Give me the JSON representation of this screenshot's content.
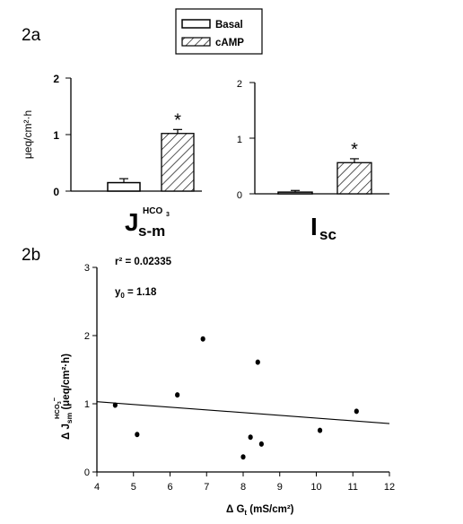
{
  "panel_labels": {
    "a": "2a",
    "b": "2b"
  },
  "legend": [
    {
      "label": "Basal",
      "fill": "#ffffff"
    },
    {
      "label": "cAMP",
      "fill": "hatch"
    }
  ],
  "chart_data": [
    {
      "type": "bar",
      "panel": "2a-left",
      "categories": [
        "Basal",
        "cAMP"
      ],
      "values": [
        0.15,
        1.02
      ],
      "errors": [
        0.07,
        0.07
      ],
      "ylim": [
        0,
        2
      ],
      "yticks": [
        "0",
        "1",
        "2"
      ],
      "ylabel": "μeq/cm²·h",
      "xlabel_main": "J",
      "xlabel_super": "HCO",
      "xlabel_super_sub": "3",
      "xlabel_sub": "s-m",
      "significance": "*"
    },
    {
      "type": "bar",
      "panel": "2a-right",
      "categories": [
        "Basal",
        "cAMP"
      ],
      "values": [
        0.03,
        0.56
      ],
      "errors": [
        0.03,
        0.07
      ],
      "ylim": [
        0,
        2
      ],
      "yticks": [
        "0",
        "1",
        "2"
      ],
      "xlabel_main": "I",
      "xlabel_sub": "sc",
      "significance": "*"
    },
    {
      "type": "scatter",
      "panel": "2b",
      "xlim": [
        4,
        12
      ],
      "ylim": [
        0,
        3
      ],
      "xticks": [
        "4",
        "5",
        "6",
        "7",
        "8",
        "9",
        "10",
        "11",
        "12"
      ],
      "yticks": [
        "0",
        "1",
        "2",
        "3"
      ],
      "xlabel": "Δ G",
      "xlabel_sub": "t",
      "xlabel_unit": " (mS/cm²)",
      "ylabel_prefix": "Δ J",
      "ylabel_sub": "sm",
      "ylabel_super": "HCO",
      "ylabel_super_sub": "3",
      "ylabel_super_charge": "−",
      "ylabel_unit": " (μeq/cm²·h)",
      "points": [
        {
          "x": 4.5,
          "y": 0.98
        },
        {
          "x": 5.1,
          "y": 0.55
        },
        {
          "x": 6.2,
          "y": 1.13
        },
        {
          "x": 6.9,
          "y": 1.95
        },
        {
          "x": 8.0,
          "y": 0.22
        },
        {
          "x": 8.2,
          "y": 0.51
        },
        {
          "x": 8.4,
          "y": 1.61
        },
        {
          "x": 8.5,
          "y": 0.41
        },
        {
          "x": 10.1,
          "y": 0.61
        },
        {
          "x": 11.1,
          "y": 0.89
        }
      ],
      "regression_line": {
        "x": [
          4,
          12
        ],
        "y": [
          1.03,
          0.71
        ]
      },
      "annotations": {
        "r2_text": "r² = 0.02335",
        "y0_prefix": "y",
        "y0_sub": "0",
        "y0_value": " = 1.18"
      }
    }
  ]
}
